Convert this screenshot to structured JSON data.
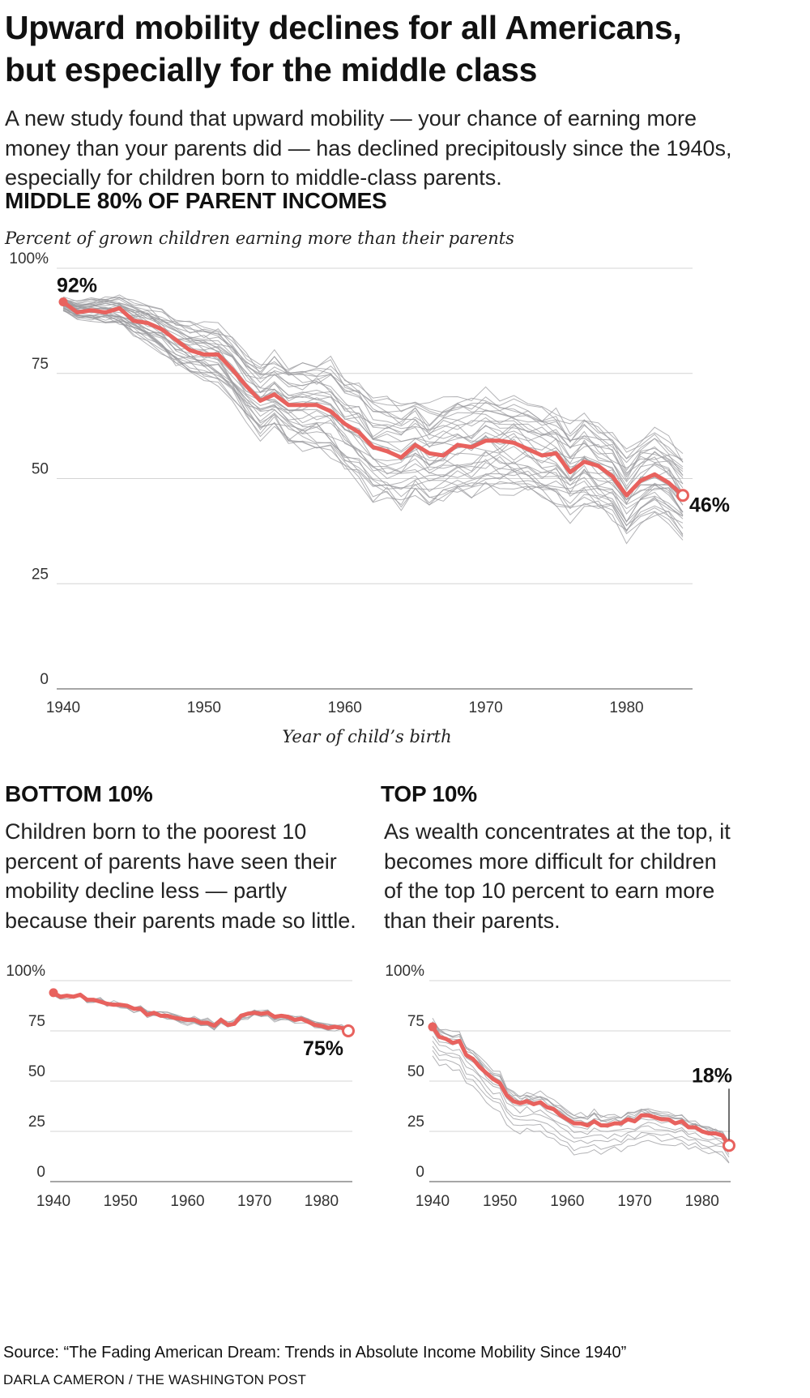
{
  "headline": [
    "Upward mobility declines for all Americans,",
    "but especially for the middle class"
  ],
  "intro": [
    "A new study found that upward mobility — your chance of earning more",
    "money than your parents did — has declined precipitously since the 1940s,",
    "especially for children born to middle-class parents."
  ],
  "main": {
    "heading": "MIDDLE 80% OF PARENT INCOMES",
    "subtitle": "Percent of grown children earning more than their parents"
  },
  "bottom": {
    "heading": "BOTTOM 10%",
    "blurb": [
      "Children born to the poorest 10",
      "percent of parents have seen their",
      "mobility decline less — partly",
      "because their parents made so little."
    ]
  },
  "top": {
    "heading": "TOP 10%",
    "blurb": [
      "As wealth concentrates at the top, it",
      "becomes more difficult for children",
      "of the top 10 percent to earn more",
      "than their parents."
    ]
  },
  "source": "Source: “The Fading American Dream: Trends in Absolute Income Mobility Since 1940”",
  "credit": "DARLA CAMERON / THE WASHINGTON POST",
  "colors": {
    "highlight": "#e8625e",
    "background_lines": "#9a9a9e",
    "grid": "#d4d4d4",
    "text": "#111111"
  },
  "chart_data": [
    {
      "type": "line",
      "xlabel": "Year of child’s birth",
      "ylabel": "Percent of grown children earning more than their parents",
      "xlim": [
        1940,
        1984
      ],
      "ylim": [
        0,
        100
      ],
      "x_ticks": [
        1940,
        1950,
        1960,
        1970,
        1980
      ],
      "y_ticks": [
        "0",
        "25",
        "50",
        "75",
        "100%"
      ],
      "grid": true,
      "background_note": "thin gray lines show each parent-income percentile",
      "x": [
        1940,
        1941,
        1942,
        1943,
        1944,
        1945,
        1946,
        1947,
        1948,
        1949,
        1950,
        1951,
        1952,
        1953,
        1954,
        1955,
        1956,
        1957,
        1958,
        1959,
        1960,
        1961,
        1962,
        1963,
        1964,
        1965,
        1966,
        1967,
        1968,
        1969,
        1970,
        1971,
        1972,
        1973,
        1974,
        1975,
        1976,
        1977,
        1978,
        1979,
        1980,
        1981,
        1982,
        1983,
        1984
      ],
      "series": [
        {
          "highlight": true,
          "values": [
            92,
            89.5,
            90,
            89.5,
            90.5,
            87.5,
            87,
            85.5,
            83,
            80.5,
            79.5,
            79.5,
            76,
            72,
            68.5,
            70,
            67.5,
            67.5,
            67.5,
            66,
            63,
            61,
            57.5,
            56.5,
            55,
            58,
            56,
            55.5,
            58,
            57.5,
            59,
            59,
            58.5,
            57,
            55.5,
            56,
            51.5,
            54,
            53,
            50.5,
            46,
            49.5,
            51,
            49,
            46
          ]
        }
      ],
      "labels": [
        {
          "text": "92%",
          "x": 1940,
          "y": 92
        },
        {
          "text": "46%",
          "x": 1984,
          "y": 46
        }
      ]
    },
    {
      "type": "line",
      "xlim": [
        1940,
        1984
      ],
      "ylim": [
        0,
        100
      ],
      "x_ticks": [
        1940,
        1950,
        1960,
        1970,
        1980
      ],
      "y_ticks": [
        "0",
        "25",
        "50",
        "75",
        "100%"
      ],
      "grid": true,
      "x": [
        1940,
        1941,
        1942,
        1943,
        1944,
        1945,
        1946,
        1947,
        1948,
        1949,
        1950,
        1951,
        1952,
        1953,
        1954,
        1955,
        1956,
        1957,
        1958,
        1959,
        1960,
        1961,
        1962,
        1963,
        1964,
        1965,
        1966,
        1967,
        1968,
        1969,
        1970,
        1971,
        1972,
        1973,
        1974,
        1975,
        1976,
        1977,
        1978,
        1979,
        1980,
        1981,
        1982,
        1983,
        1984
      ],
      "series": [
        {
          "highlight": true,
          "values": [
            94,
            92,
            92.5,
            92,
            93,
            90.5,
            90.5,
            89.5,
            88.5,
            88,
            88,
            87.5,
            86,
            86,
            83,
            84,
            82.5,
            82.5,
            81.5,
            81,
            80.5,
            80.5,
            79,
            79,
            77.5,
            80.5,
            78,
            78.5,
            82.5,
            83.5,
            84,
            83.5,
            84,
            82,
            82.5,
            82,
            80.5,
            81,
            79.5,
            78,
            77.5,
            76.5,
            77,
            76.5,
            75
          ]
        }
      ],
      "labels": [
        {
          "text": "75%",
          "x": 1984,
          "y": 75
        }
      ]
    },
    {
      "type": "line",
      "xlim": [
        1940,
        1984
      ],
      "ylim": [
        0,
        100
      ],
      "x_ticks": [
        1940,
        1950,
        1960,
        1970,
        1980
      ],
      "y_ticks": [
        "0",
        "25",
        "50",
        "75",
        "100%"
      ],
      "grid": true,
      "x": [
        1940,
        1941,
        1942,
        1943,
        1944,
        1945,
        1946,
        1947,
        1948,
        1949,
        1950,
        1951,
        1952,
        1953,
        1954,
        1955,
        1956,
        1957,
        1958,
        1959,
        1960,
        1961,
        1962,
        1963,
        1964,
        1965,
        1966,
        1967,
        1968,
        1969,
        1970,
        1971,
        1972,
        1973,
        1974,
        1975,
        1976,
        1977,
        1978,
        1979,
        1980,
        1981,
        1982,
        1983,
        1984
      ],
      "series": [
        {
          "highlight": true,
          "values": [
            77,
            72,
            71,
            69,
            70,
            63,
            61,
            57,
            54,
            51,
            49,
            43,
            40,
            39,
            40,
            38.5,
            39.5,
            37,
            36,
            33,
            31,
            29,
            29,
            28,
            30,
            28,
            28,
            29,
            29,
            31,
            30,
            33,
            33,
            32,
            31,
            31,
            29,
            30,
            27,
            27,
            25,
            24,
            24,
            23,
            18
          ]
        }
      ],
      "labels": [
        {
          "text": "18%",
          "x": 1984,
          "y": 18
        }
      ]
    }
  ]
}
